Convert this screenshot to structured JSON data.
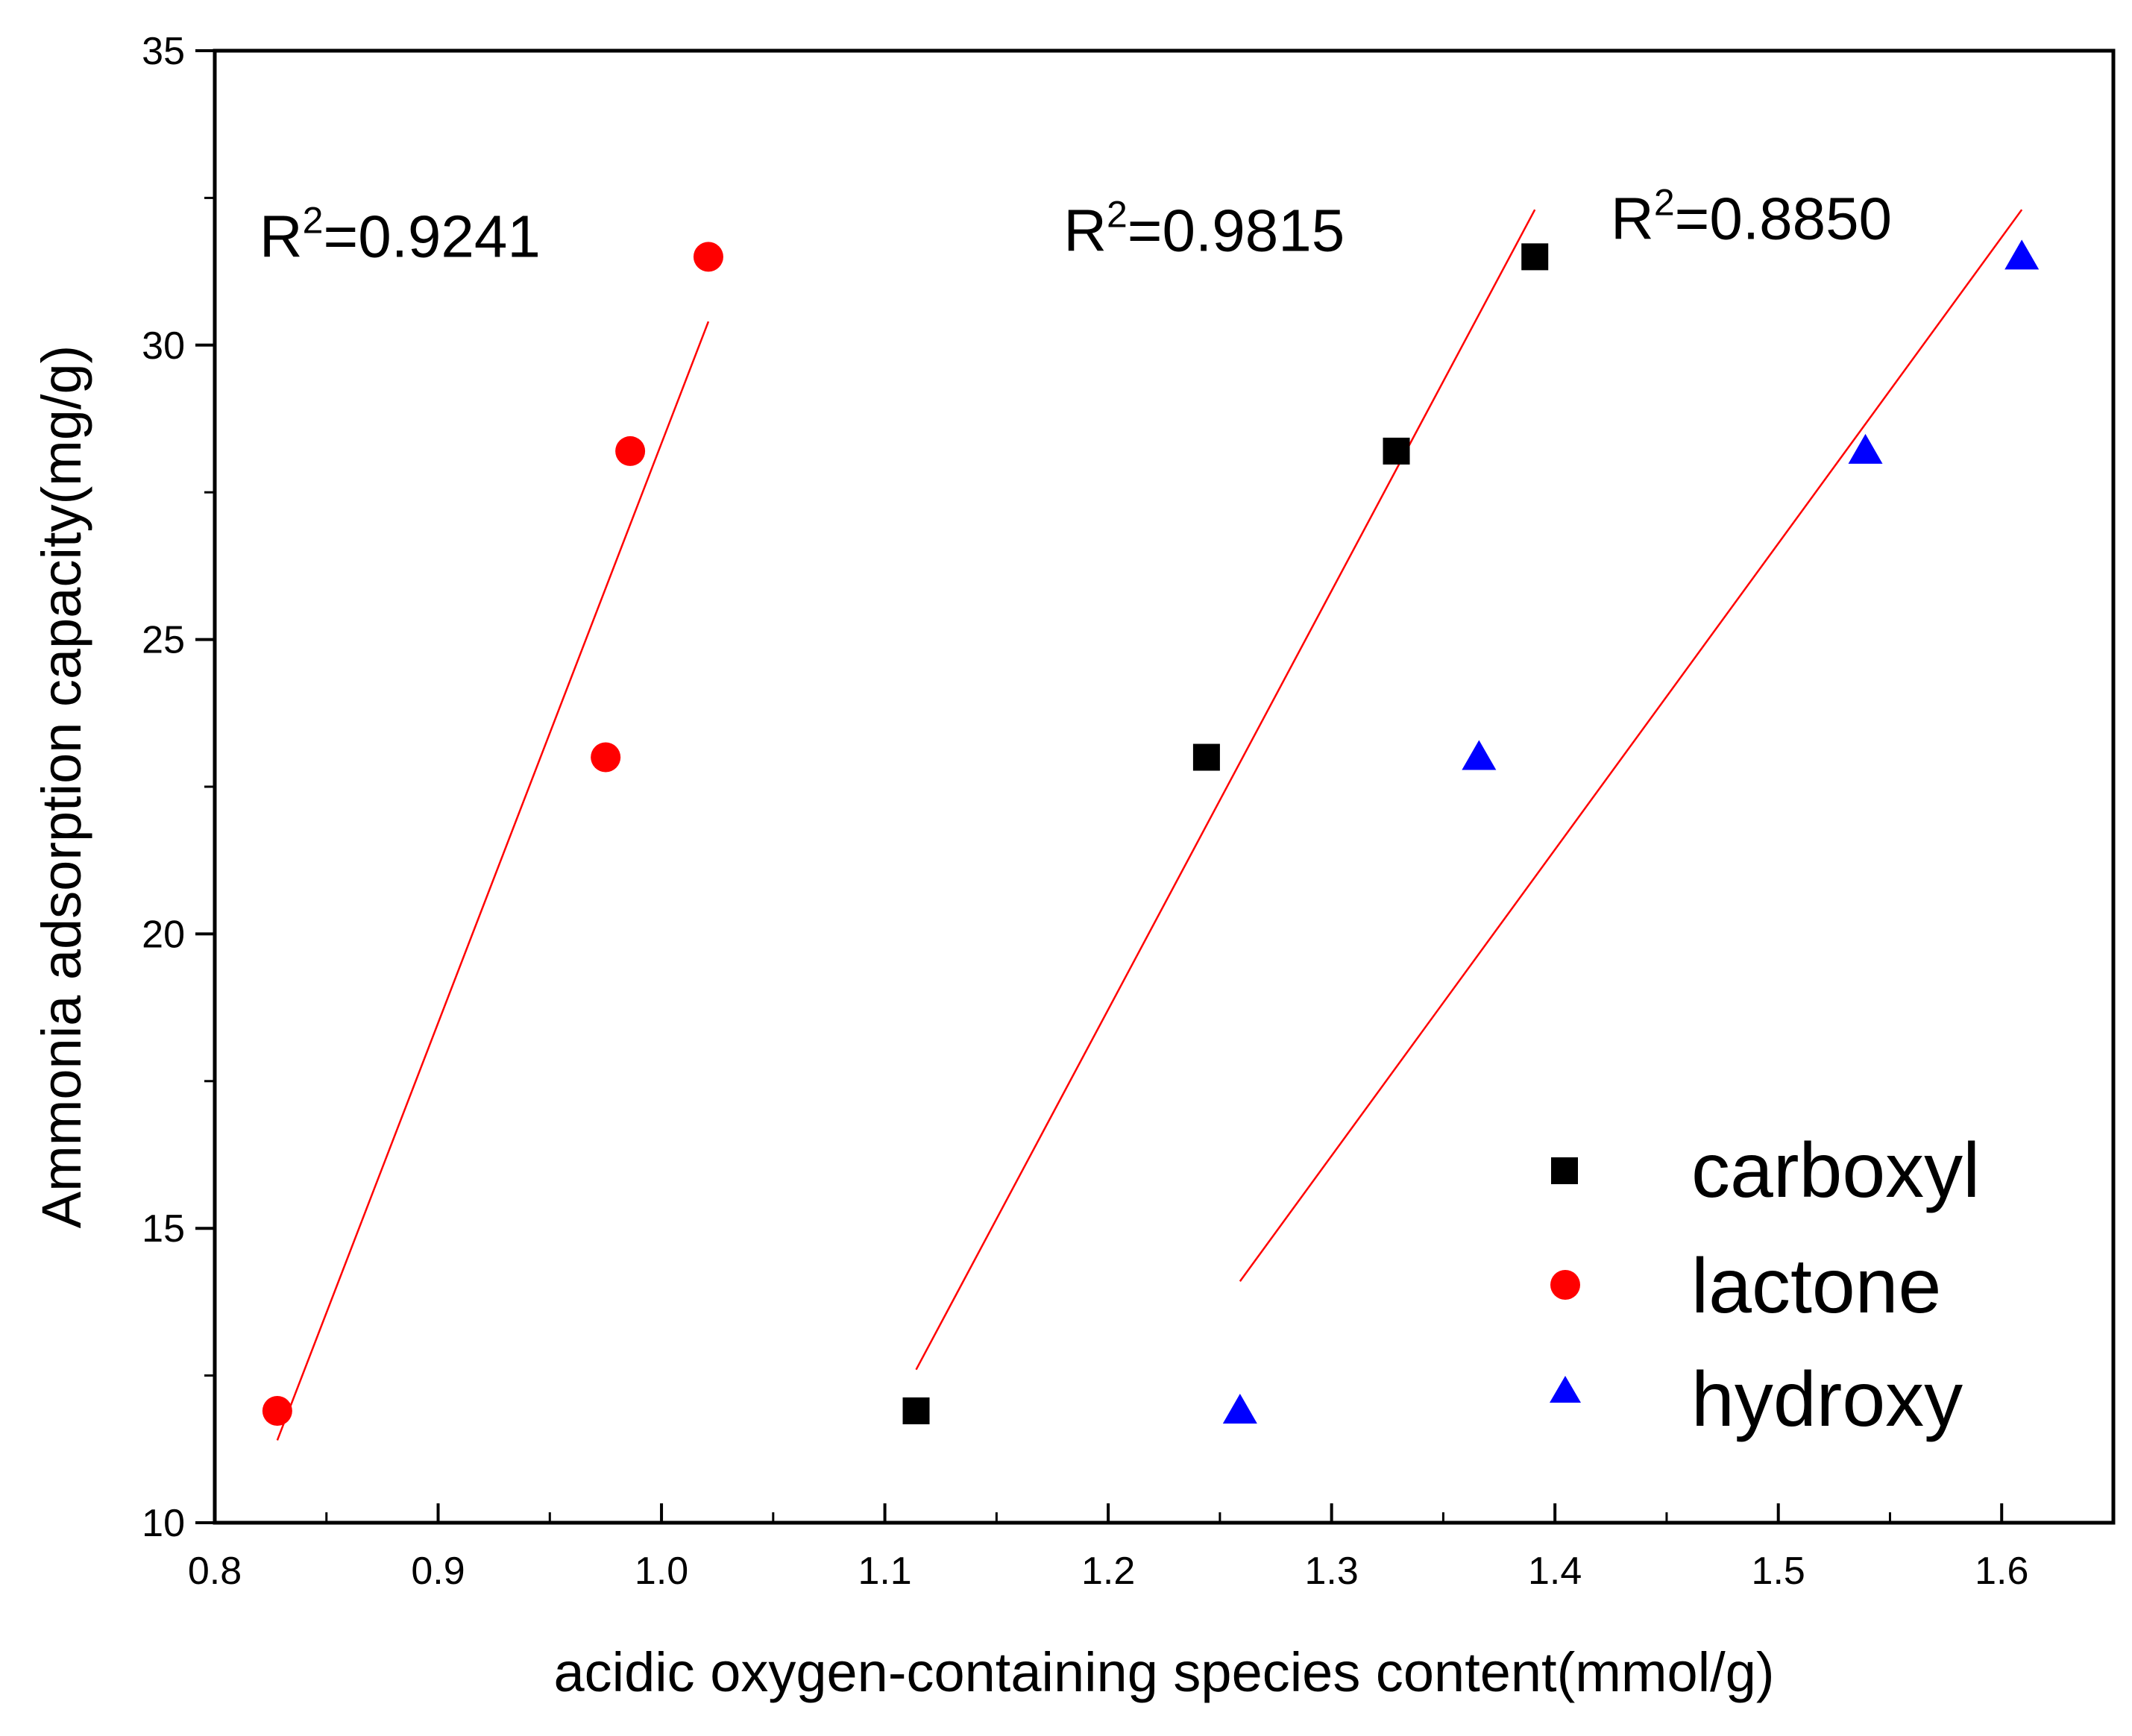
{
  "chart_data": {
    "type": "scatter",
    "title": "",
    "xlabel": "acidic oxygen-containing species content(mmol/g)",
    "ylabel": "Ammonia adsorption capacity(mg/g)",
    "xlim": [
      0.8,
      1.65
    ],
    "ylim": [
      10,
      35
    ],
    "xticks": [
      0.8,
      0.9,
      1.0,
      1.1,
      1.2,
      1.3,
      1.4,
      1.5,
      1.6
    ],
    "xtick_labels": [
      "0.8",
      "0.9",
      "1.0",
      "1.1",
      "1.2",
      "1.3",
      "1.4",
      "1.5",
      "1.6"
    ],
    "yticks": [
      10,
      15,
      20,
      25,
      30,
      35
    ],
    "ytick_labels": [
      "10",
      "15",
      "20",
      "25",
      "30",
      "35"
    ],
    "grid": false,
    "legend_position": "bottom-right",
    "series": [
      {
        "name": "carboxyl",
        "marker": "square",
        "color": "#000000",
        "x": [
          1.114,
          1.244,
          1.329,
          1.391
        ],
        "y": [
          11.9,
          23.0,
          28.2,
          31.5
        ],
        "fit": {
          "x": [
            1.114,
            1.391
          ],
          "y": [
            12.6,
            32.3
          ],
          "color": "#ff0000"
        }
      },
      {
        "name": "lactone",
        "marker": "circle",
        "color": "#ff0000",
        "x": [
          0.828,
          0.975,
          0.986,
          1.021
        ],
        "y": [
          11.9,
          23.0,
          28.2,
          31.5
        ],
        "fit": {
          "x": [
            0.828,
            1.021
          ],
          "y": [
            11.4,
            30.4
          ],
          "color": "#ff0000"
        }
      },
      {
        "name": "hydroxy",
        "marker": "triangle",
        "color": "#0000ff",
        "x": [
          1.259,
          1.366,
          1.539,
          1.609
        ],
        "y": [
          11.9,
          23.0,
          28.2,
          31.5
        ],
        "fit": {
          "x": [
            1.259,
            1.609
          ],
          "y": [
            14.1,
            32.3
          ],
          "color": "#ff0000"
        }
      }
    ],
    "annotations": [
      {
        "base": "R",
        "sup": "2",
        "rest": "=0.9241",
        "x": 0.82,
        "y": 31.5
      },
      {
        "base": "R",
        "sup": "2",
        "rest": "=0.9815",
        "x": 1.18,
        "y": 31.6
      },
      {
        "base": "R",
        "sup": "2",
        "rest": "=0.8850",
        "x": 1.425,
        "y": 31.8
      }
    ]
  }
}
